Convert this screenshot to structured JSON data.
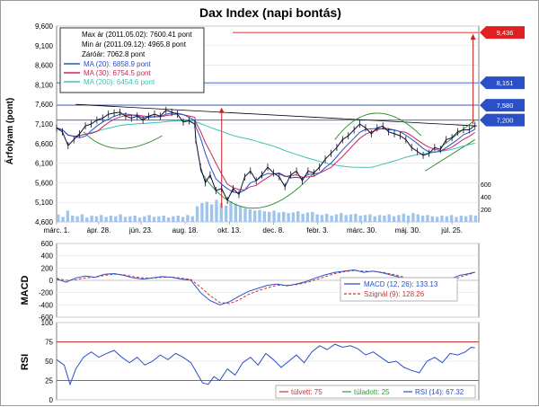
{
  "chart_data": [
    {
      "type": "line",
      "panel": "price",
      "title": "Dax Index (napi bontás)",
      "ylabel": "Árfolyam (pont)",
      "y_ticks": [
        "9,600",
        "9,100",
        "8,600",
        "8,100",
        "7,600",
        "7,100",
        "6,600",
        "6,100",
        "5,600",
        "5,100",
        "4,600"
      ],
      "ylim": [
        4600,
        9600
      ],
      "y2_ticks": [
        "600",
        "400",
        "200"
      ],
      "x_ticks": [
        "márc. 1.",
        "ápr. 28.",
        "jún. 23.",
        "aug. 18.",
        "okt. 13.",
        "dec. 8.",
        "febr. 3.",
        "márc. 30.",
        "máj. 30.",
        "júl. 25."
      ],
      "info": {
        "max_line": "Max ár (2011.05.02): 7600.41 pont",
        "min_line": "Min ár (2011.09.12): 4965.8 pont",
        "close_line": "Záróár: 7062.8 pont"
      },
      "legend": [
        {
          "label": "MA (20): 6858.9 pont",
          "color": "#2a50c8"
        },
        {
          "label": "MA (30): 6754.5 pont",
          "color": "#c8285a"
        },
        {
          "label": "MA (200): 6454.6 pont",
          "color": "#3cc0b4"
        }
      ],
      "close_points": [
        [
          0,
          7000
        ],
        [
          6,
          6900
        ],
        [
          12,
          6550
        ],
        [
          18,
          6700
        ],
        [
          24,
          6850
        ],
        [
          30,
          7050
        ],
        [
          36,
          7100
        ],
        [
          42,
          7200
        ],
        [
          48,
          7250
        ],
        [
          54,
          7350
        ],
        [
          60,
          7380
        ],
        [
          66,
          7400
        ],
        [
          72,
          7300
        ],
        [
          78,
          7250
        ],
        [
          84,
          7300
        ],
        [
          90,
          7200
        ],
        [
          96,
          7300
        ],
        [
          102,
          7350
        ],
        [
          108,
          7300
        ],
        [
          114,
          7450
        ],
        [
          120,
          7400
        ],
        [
          126,
          7350
        ],
        [
          132,
          7150
        ],
        [
          138,
          7180
        ],
        [
          144,
          7100
        ],
        [
          145,
          6700
        ],
        [
          150,
          6000
        ],
        [
          155,
          5600
        ],
        [
          160,
          5800
        ],
        [
          166,
          5400
        ],
        [
          172,
          5450
        ],
        [
          178,
          5150
        ],
        [
          184,
          5450
        ],
        [
          190,
          5300
        ],
        [
          196,
          5750
        ],
        [
          202,
          5900
        ],
        [
          208,
          5650
        ],
        [
          214,
          5800
        ],
        [
          220,
          6000
        ],
        [
          226,
          5850
        ],
        [
          232,
          5750
        ],
        [
          238,
          5500
        ],
        [
          244,
          5800
        ],
        [
          250,
          5900
        ],
        [
          256,
          5650
        ],
        [
          262,
          5900
        ],
        [
          268,
          5850
        ],
        [
          274,
          6000
        ],
        [
          280,
          6200
        ],
        [
          286,
          6350
        ],
        [
          292,
          6500
        ],
        [
          298,
          6700
        ],
        [
          304,
          6800
        ],
        [
          310,
          6950
        ],
        [
          316,
          7100
        ],
        [
          322,
          7000
        ],
        [
          328,
          6850
        ],
        [
          334,
          7000
        ],
        [
          340,
          7050
        ],
        [
          346,
          6900
        ],
        [
          352,
          6850
        ],
        [
          358,
          6800
        ],
        [
          364,
          6700
        ],
        [
          370,
          6500
        ],
        [
          376,
          6400
        ],
        [
          382,
          6300
        ],
        [
          388,
          6350
        ],
        [
          394,
          6500
        ],
        [
          400,
          6450
        ],
        [
          406,
          6700
        ],
        [
          412,
          6750
        ],
        [
          418,
          6900
        ],
        [
          424,
          6950
        ],
        [
          430,
          6950
        ],
        [
          436,
          7062.8
        ]
      ],
      "volume_bars": [
        [
          0,
          120
        ],
        [
          5,
          80
        ],
        [
          10,
          180
        ],
        [
          15,
          100
        ],
        [
          20,
          90
        ],
        [
          25,
          120
        ],
        [
          30,
          70
        ],
        [
          35,
          100
        ],
        [
          40,
          90
        ],
        [
          45,
          110
        ],
        [
          50,
          80
        ],
        [
          55,
          100
        ],
        [
          60,
          90
        ],
        [
          65,
          120
        ],
        [
          70,
          80
        ],
        [
          75,
          90
        ],
        [
          80,
          100
        ],
        [
          85,
          70
        ],
        [
          90,
          90
        ],
        [
          95,
          110
        ],
        [
          100,
          80
        ],
        [
          105,
          90
        ],
        [
          110,
          100
        ],
        [
          115,
          70
        ],
        [
          120,
          90
        ],
        [
          125,
          100
        ],
        [
          130,
          80
        ],
        [
          135,
          110
        ],
        [
          140,
          90
        ],
        [
          145,
          250
        ],
        [
          150,
          300
        ],
        [
          155,
          320
        ],
        [
          160,
          280
        ],
        [
          165,
          350
        ],
        [
          170,
          300
        ],
        [
          175,
          260
        ],
        [
          180,
          330
        ],
        [
          185,
          290
        ],
        [
          190,
          250
        ],
        [
          195,
          220
        ],
        [
          200,
          200
        ],
        [
          205,
          180
        ],
        [
          210,
          190
        ],
        [
          215,
          170
        ],
        [
          220,
          160
        ],
        [
          225,
          180
        ],
        [
          230,
          150
        ],
        [
          235,
          160
        ],
        [
          240,
          140
        ],
        [
          245,
          150
        ],
        [
          250,
          170
        ],
        [
          255,
          130
        ],
        [
          260,
          150
        ],
        [
          265,
          160
        ],
        [
          270,
          120
        ],
        [
          275,
          110
        ],
        [
          280,
          130
        ],
        [
          285,
          100
        ],
        [
          290,
          120
        ],
        [
          295,
          140
        ],
        [
          300,
          110
        ],
        [
          305,
          120
        ],
        [
          310,
          130
        ],
        [
          315,
          100
        ],
        [
          320,
          110
        ],
        [
          325,
          120
        ],
        [
          330,
          90
        ],
        [
          335,
          110
        ],
        [
          340,
          100
        ],
        [
          345,
          120
        ],
        [
          350,
          90
        ],
        [
          355,
          110
        ],
        [
          360,
          130
        ],
        [
          365,
          100
        ],
        [
          370,
          140
        ],
        [
          375,
          120
        ],
        [
          380,
          100
        ],
        [
          385,
          110
        ],
        [
          390,
          90
        ],
        [
          395,
          80
        ],
        [
          400,
          100
        ],
        [
          405,
          90
        ],
        [
          410,
          110
        ],
        [
          415,
          80
        ],
        [
          420,
          100
        ],
        [
          425,
          90
        ],
        [
          430,
          110
        ],
        [
          435,
          100
        ]
      ],
      "price_labels": [
        {
          "label": "9,436",
          "value": 9436,
          "color": "#e02020"
        },
        {
          "label": "8,151",
          "value": 8151,
          "color": "#2a50c8"
        },
        {
          "label": "7,580",
          "value": 7580,
          "color": "#2a50c8"
        },
        {
          "label": "7,200",
          "value": 7200,
          "color": "#2a50c8"
        }
      ]
    },
    {
      "type": "line",
      "panel": "macd",
      "ylabel": "MACD",
      "y_ticks": [
        "600",
        "400",
        "200",
        "0",
        "-200",
        "-400",
        "-600"
      ],
      "ylim": [
        -600,
        600
      ],
      "legend": [
        {
          "label": "MACD (12, 26): 133.13",
          "color": "#2a50c8"
        },
        {
          "label": "Szignál (9): 128.26",
          "color": "#c83232"
        }
      ],
      "macd_points": [
        [
          0,
          20
        ],
        [
          10,
          -30
        ],
        [
          20,
          40
        ],
        [
          30,
          70
        ],
        [
          40,
          50
        ],
        [
          50,
          100
        ],
        [
          60,
          110
        ],
        [
          70,
          80
        ],
        [
          80,
          40
        ],
        [
          90,
          20
        ],
        [
          100,
          40
        ],
        [
          110,
          60
        ],
        [
          120,
          50
        ],
        [
          130,
          20
        ],
        [
          140,
          0
        ],
        [
          150,
          -200
        ],
        [
          160,
          -330
        ],
        [
          170,
          -400
        ],
        [
          180,
          -350
        ],
        [
          190,
          -260
        ],
        [
          200,
          -180
        ],
        [
          210,
          -130
        ],
        [
          220,
          -80
        ],
        [
          230,
          -60
        ],
        [
          240,
          -90
        ],
        [
          250,
          -60
        ],
        [
          260,
          -20
        ],
        [
          270,
          40
        ],
        [
          280,
          90
        ],
        [
          290,
          130
        ],
        [
          300,
          150
        ],
        [
          310,
          170
        ],
        [
          320,
          130
        ],
        [
          330,
          150
        ],
        [
          340,
          120
        ],
        [
          350,
          80
        ],
        [
          360,
          40
        ],
        [
          370,
          -20
        ],
        [
          380,
          -60
        ],
        [
          390,
          -80
        ],
        [
          400,
          -50
        ],
        [
          410,
          20
        ],
        [
          420,
          80
        ],
        [
          430,
          110
        ],
        [
          436,
          133.13
        ]
      ],
      "signal_points": [
        [
          0,
          30
        ],
        [
          10,
          0
        ],
        [
          20,
          10
        ],
        [
          30,
          40
        ],
        [
          40,
          50
        ],
        [
          50,
          80
        ],
        [
          60,
          100
        ],
        [
          70,
          90
        ],
        [
          80,
          60
        ],
        [
          90,
          40
        ],
        [
          100,
          35
        ],
        [
          110,
          50
        ],
        [
          120,
          52
        ],
        [
          130,
          35
        ],
        [
          140,
          15
        ],
        [
          150,
          -110
        ],
        [
          160,
          -250
        ],
        [
          170,
          -360
        ],
        [
          180,
          -380
        ],
        [
          190,
          -320
        ],
        [
          200,
          -230
        ],
        [
          210,
          -170
        ],
        [
          220,
          -120
        ],
        [
          230,
          -80
        ],
        [
          240,
          -80
        ],
        [
          250,
          -70
        ],
        [
          260,
          -40
        ],
        [
          270,
          10
        ],
        [
          280,
          60
        ],
        [
          290,
          110
        ],
        [
          300,
          140
        ],
        [
          310,
          160
        ],
        [
          320,
          150
        ],
        [
          330,
          145
        ],
        [
          340,
          130
        ],
        [
          350,
          100
        ],
        [
          360,
          60
        ],
        [
          370,
          10
        ],
        [
          380,
          -40
        ],
        [
          390,
          -70
        ],
        [
          400,
          -60
        ],
        [
          410,
          -10
        ],
        [
          420,
          50
        ],
        [
          430,
          100
        ],
        [
          436,
          128.26
        ]
      ]
    },
    {
      "type": "line",
      "panel": "rsi",
      "ylabel": "RSI",
      "y_ticks": [
        "100",
        "75",
        "50",
        "25",
        "0"
      ],
      "ylim": [
        0,
        100
      ],
      "overbought": 75,
      "oversold": 25,
      "legend": [
        {
          "label": "túlvett: 75",
          "color": "#c83232"
        },
        {
          "label": "túladott: 25",
          "color": "#3a9a3a"
        },
        {
          "label": "RSI (14): 67.32",
          "color": "#2a50c8"
        }
      ],
      "rsi_points": [
        [
          0,
          52
        ],
        [
          8,
          45
        ],
        [
          14,
          20
        ],
        [
          20,
          40
        ],
        [
          28,
          55
        ],
        [
          36,
          62
        ],
        [
          44,
          55
        ],
        [
          52,
          60
        ],
        [
          60,
          64
        ],
        [
          68,
          55
        ],
        [
          76,
          48
        ],
        [
          84,
          55
        ],
        [
          92,
          45
        ],
        [
          100,
          50
        ],
        [
          108,
          58
        ],
        [
          116,
          52
        ],
        [
          124,
          60
        ],
        [
          132,
          55
        ],
        [
          140,
          48
        ],
        [
          146,
          35
        ],
        [
          152,
          22
        ],
        [
          158,
          20
        ],
        [
          164,
          30
        ],
        [
          170,
          25
        ],
        [
          178,
          40
        ],
        [
          186,
          32
        ],
        [
          194,
          48
        ],
        [
          202,
          55
        ],
        [
          210,
          45
        ],
        [
          218,
          60
        ],
        [
          226,
          52
        ],
        [
          234,
          42
        ],
        [
          242,
          50
        ],
        [
          250,
          58
        ],
        [
          258,
          48
        ],
        [
          266,
          62
        ],
        [
          274,
          70
        ],
        [
          282,
          65
        ],
        [
          290,
          72
        ],
        [
          298,
          68
        ],
        [
          306,
          70
        ],
        [
          314,
          66
        ],
        [
          322,
          58
        ],
        [
          330,
          62
        ],
        [
          338,
          55
        ],
        [
          346,
          48
        ],
        [
          354,
          50
        ],
        [
          362,
          42
        ],
        [
          370,
          38
        ],
        [
          378,
          35
        ],
        [
          386,
          50
        ],
        [
          394,
          55
        ],
        [
          402,
          48
        ],
        [
          410,
          60
        ],
        [
          418,
          58
        ],
        [
          426,
          62
        ],
        [
          432,
          68
        ],
        [
          436,
          67.32
        ]
      ]
    }
  ]
}
